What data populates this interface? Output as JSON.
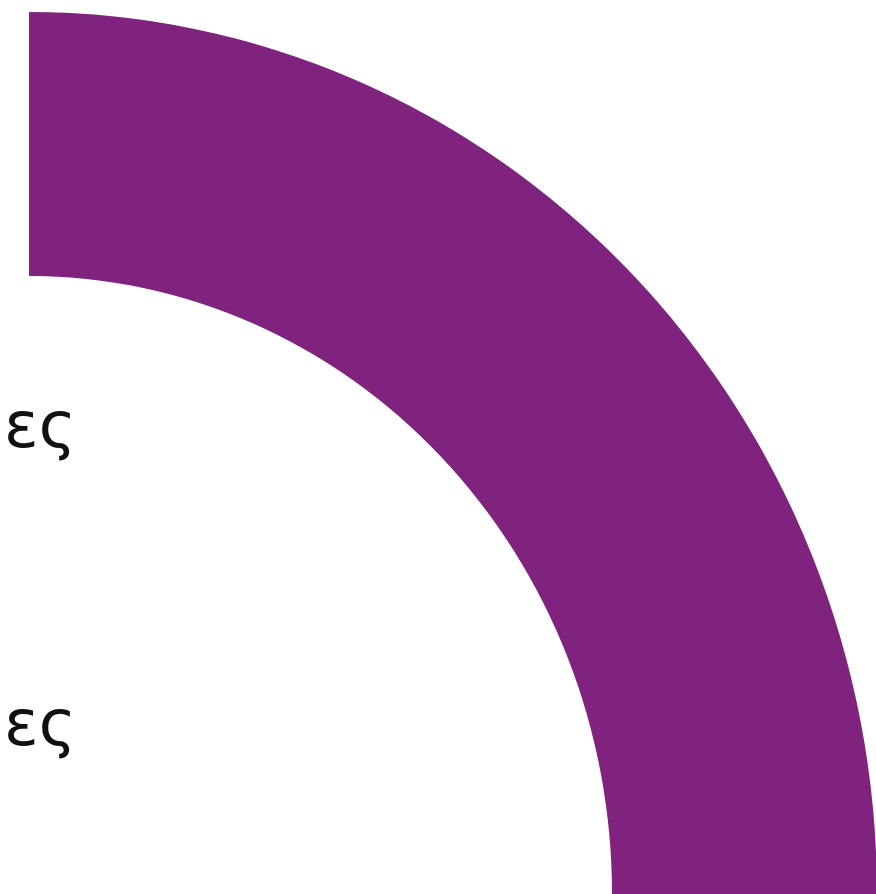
{
  "texts": {
    "upper": "ες",
    "lower": "ες"
  },
  "colors": {
    "arc": "#80237f",
    "background": "#ffffff",
    "text": "#111111"
  }
}
